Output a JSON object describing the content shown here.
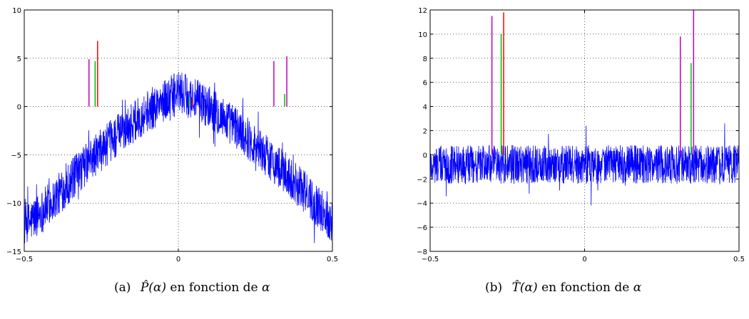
{
  "chart_data": [
    {
      "type": "line",
      "caption": {
        "tag": "(a)",
        "symbol": "P̂(α)",
        "text": "en fonction de",
        "var": "α"
      },
      "xlim": [
        -0.5,
        0.5
      ],
      "ylim": [
        -15,
        10
      ],
      "xticks": [
        -0.5,
        0,
        0.5
      ],
      "xtick_labels": [
        "−0.5",
        "0",
        "0.5"
      ],
      "yticks": [
        -15,
        -10,
        -5,
        0,
        5,
        10
      ],
      "ytick_labels": [
        "−15",
        "−10",
        "−5",
        "0",
        "5",
        "10"
      ],
      "grid": true,
      "noise_series": {
        "color": "#0000ff",
        "shape": "parabola",
        "centerline": {
          "x": [
            -0.5,
            -0.4,
            -0.3,
            -0.2,
            -0.1,
            0,
            0.1,
            0.2,
            0.3,
            0.4,
            0.5
          ],
          "y": [
            -12.5,
            -9.5,
            -6.0,
            -3.0,
            -0.5,
            1.5,
            0,
            -2.5,
            -5.5,
            -8.5,
            -12
          ]
        },
        "spread": 2.2
      },
      "spikes": [
        {
          "x": -0.29,
          "y": 4.9,
          "color": "#bf00bf"
        },
        {
          "x": -0.27,
          "y": 4.7,
          "color": "#00bf00"
        },
        {
          "x": -0.262,
          "y": 6.8,
          "color": "#ff0000"
        },
        {
          "x": 0.035,
          "y": 1.0,
          "color": "#00bf00"
        },
        {
          "x": 0.045,
          "y": 0.8,
          "color": "#ff0000"
        },
        {
          "x": 0.31,
          "y": 4.7,
          "color": "#bf00bf"
        },
        {
          "x": 0.345,
          "y": 1.3,
          "color": "#00bf00"
        },
        {
          "x": 0.352,
          "y": 5.2,
          "color": "#bf00bf"
        }
      ]
    },
    {
      "type": "line",
      "caption": {
        "tag": "(b)",
        "symbol": "T̂(α)",
        "text": "en fonction de",
        "var": "α"
      },
      "xlim": [
        -0.5,
        0.5
      ],
      "ylim": [
        -8,
        12
      ],
      "xticks": [
        -0.5,
        0,
        0.5
      ],
      "xtick_labels": [
        "−0.5",
        "0",
        "0.5"
      ],
      "yticks": [
        -8,
        -6,
        -4,
        -2,
        0,
        2,
        4,
        6,
        8,
        10,
        12
      ],
      "ytick_labels": [
        "−8",
        "−6",
        "−4",
        "−2",
        "0",
        "2",
        "4",
        "6",
        "8",
        "10",
        "12"
      ],
      "grid": true,
      "noise_series": {
        "color": "#0000ff",
        "shape": "flat",
        "centerline": {
          "x": [
            -0.5,
            0.5
          ],
          "y": [
            -0.8,
            -0.8
          ]
        },
        "spread": 1.6
      },
      "spikes": [
        {
          "x": -0.3,
          "y": 11.5,
          "color": "#bf00bf"
        },
        {
          "x": -0.27,
          "y": 10.0,
          "color": "#00bf00"
        },
        {
          "x": -0.262,
          "y": 11.8,
          "color": "#ff0000"
        },
        {
          "x": 0.31,
          "y": 9.8,
          "color": "#bf00bf"
        },
        {
          "x": 0.345,
          "y": 7.6,
          "color": "#00bf00"
        },
        {
          "x": 0.353,
          "y": 12.0,
          "color": "#bf00bf"
        }
      ]
    }
  ]
}
